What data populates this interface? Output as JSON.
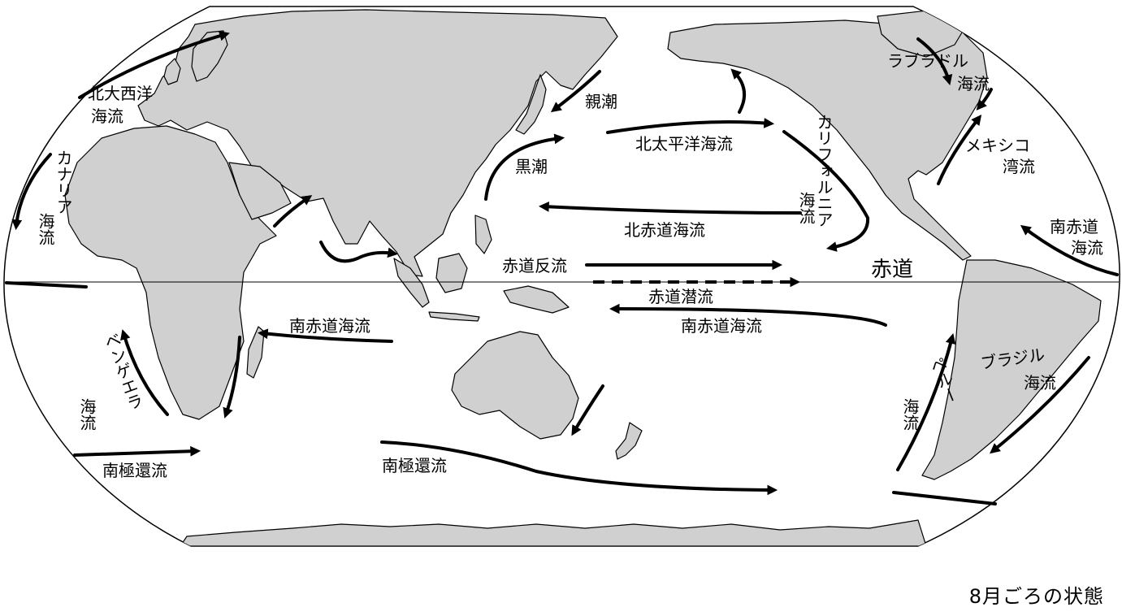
{
  "caption": "8月ごろの状態",
  "equator_label": "赤道",
  "currents": {
    "north_atlantic": [
      "北大西洋",
      "海流"
    ],
    "canary": [
      "カナリア",
      "海流"
    ],
    "labrador": [
      "ラブラドル",
      "海流"
    ],
    "gulf_stream": [
      "メキシコ",
      "湾流"
    ],
    "oyashio": "親潮",
    "kuroshio": "黒潮",
    "north_pacific": "北太平洋海流",
    "california": [
      "カリフォルニア",
      "海流"
    ],
    "north_equatorial": "北赤道海流",
    "equatorial_counter": "赤道反流",
    "equatorial_undercurrent": "赤道潜流",
    "south_equatorial_pacific": "南赤道海流",
    "south_equatorial_indian": "南赤道海流",
    "south_equatorial_atlantic": [
      "南赤道",
      "海流"
    ],
    "benguela": [
      "ベンゲエラ",
      "海流"
    ],
    "antarctic_circumpolar_west": "南極還流",
    "antarctic_circumpolar_center": "南極還流",
    "peru": [
      "ペルー",
      "海流"
    ],
    "brazil": [
      "ブラジル",
      "海流"
    ]
  }
}
